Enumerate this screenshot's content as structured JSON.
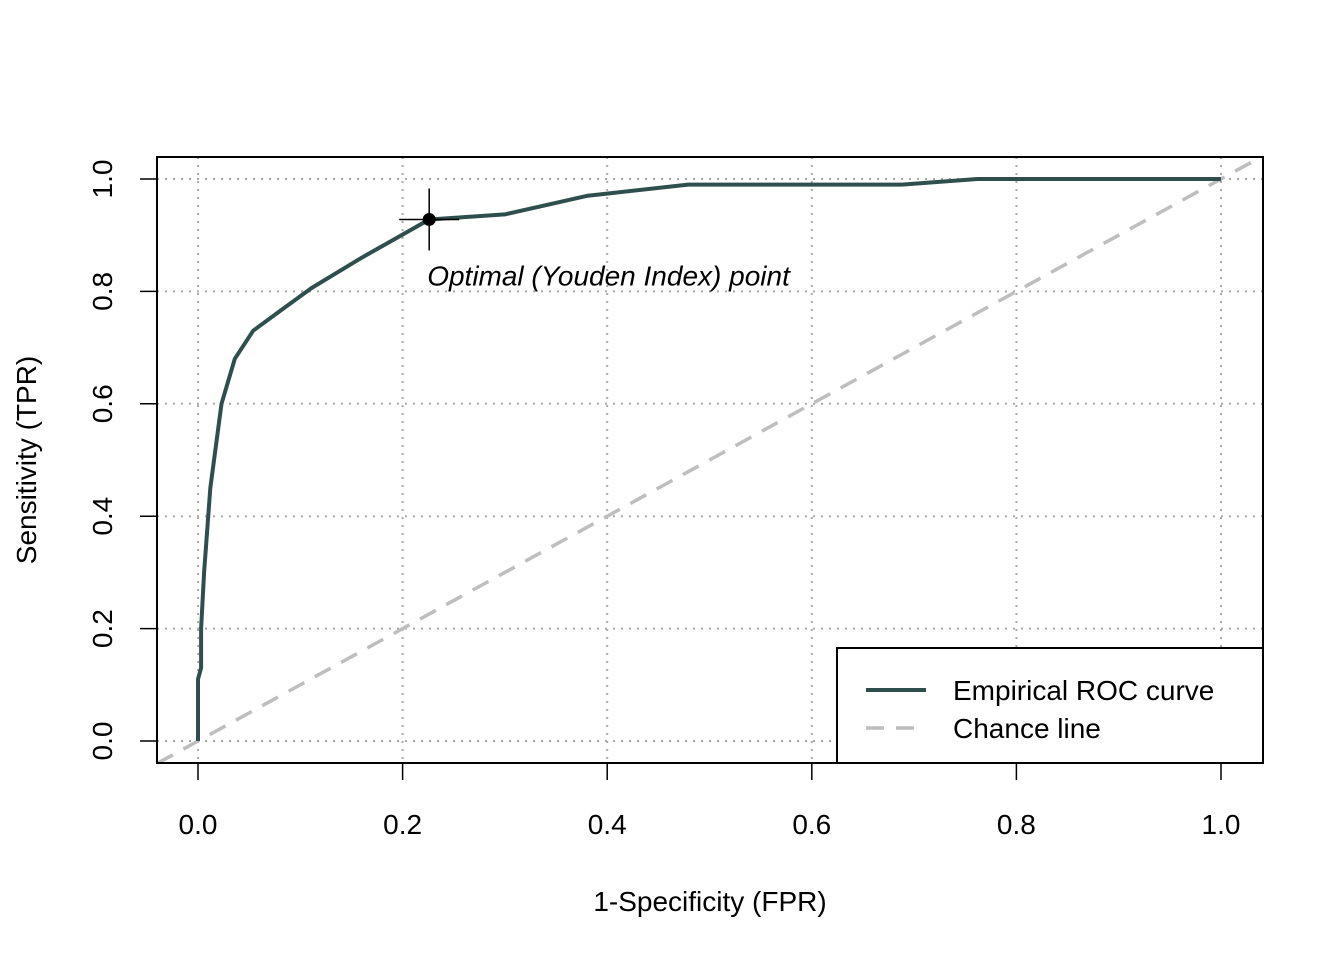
{
  "chart_data": {
    "type": "line",
    "title": "",
    "xlabel": "1-Specificity (FPR)",
    "ylabel": "Sensitivity (TPR)",
    "xlim": [
      0,
      1
    ],
    "ylim": [
      0,
      1
    ],
    "x_ticks": [
      "0.0",
      "0.2",
      "0.4",
      "0.6",
      "0.8",
      "1.0"
    ],
    "y_ticks": [
      "0.0",
      "0.2",
      "0.4",
      "0.6",
      "0.8",
      "1.0"
    ],
    "grid": true,
    "series": [
      {
        "name": "Empirical ROC curve",
        "color": "#2F4F4F",
        "style": "solid",
        "points": [
          [
            0.0,
            0.0
          ],
          [
            0.0,
            0.11
          ],
          [
            0.003,
            0.13
          ],
          [
            0.003,
            0.2
          ],
          [
            0.006,
            0.3
          ],
          [
            0.012,
            0.45
          ],
          [
            0.023,
            0.6
          ],
          [
            0.036,
            0.68
          ],
          [
            0.054,
            0.73
          ],
          [
            0.08,
            0.765
          ],
          [
            0.111,
            0.806
          ],
          [
            0.16,
            0.86
          ],
          [
            0.226,
            0.928
          ],
          [
            0.3,
            0.937
          ],
          [
            0.38,
            0.97
          ],
          [
            0.479,
            0.99
          ],
          [
            0.688,
            0.99
          ],
          [
            0.762,
            1.0
          ],
          [
            1.0,
            1.0
          ]
        ]
      },
      {
        "name": "Chance line",
        "color": "#BEBEBE",
        "style": "dashed",
        "points": [
          [
            -0.04,
            -0.04
          ],
          [
            1.04,
            1.04
          ]
        ]
      }
    ],
    "optimal_point": {
      "x": 0.226,
      "y": 0.928
    },
    "annotation": "Optimal (Youden Index) point",
    "legend": {
      "position": "bottom-right",
      "entries": [
        "Empirical ROC curve",
        "Chance line"
      ]
    }
  }
}
